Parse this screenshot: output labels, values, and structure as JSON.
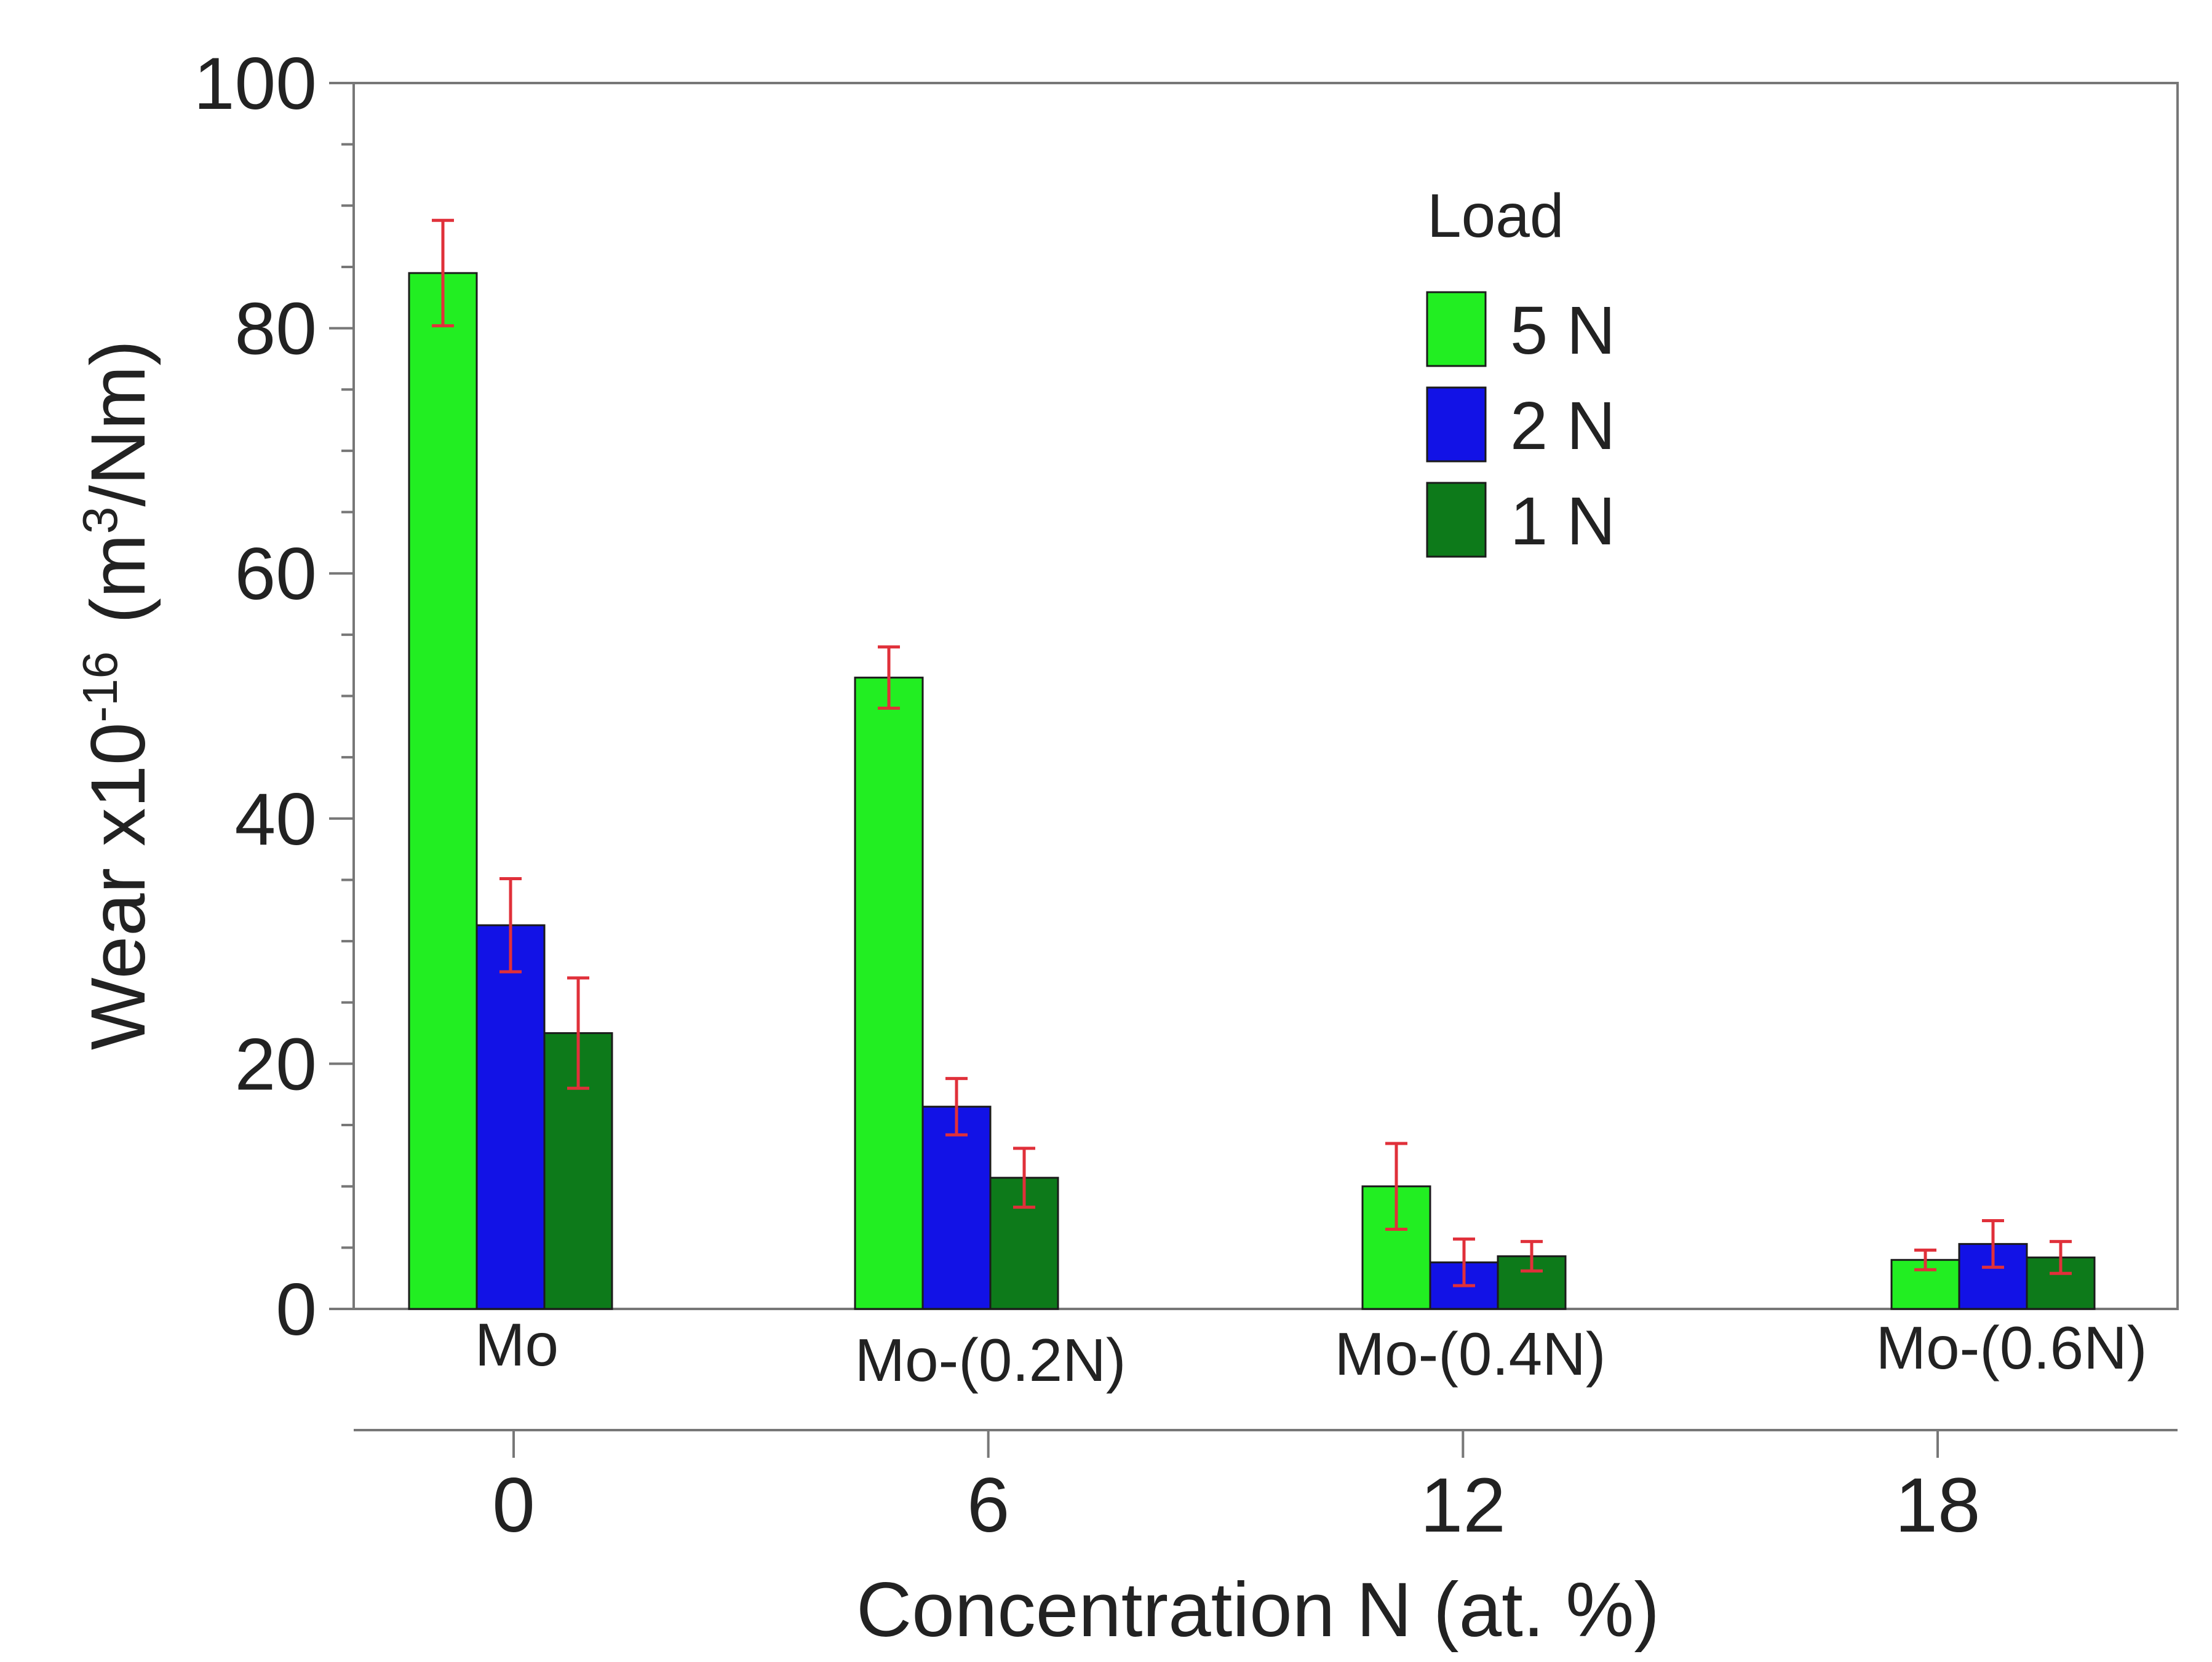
{
  "chart_data": {
    "type": "bar",
    "title": "",
    "ylabel_main": "Wear x10",
    "ylabel_exp": "-16",
    "ylabel_unit_pre": "(m",
    "ylabel_unit_sup": "3",
    "ylabel_unit_post": "/Nm)",
    "xlabel": "Concentration N  (at. %)",
    "ylim": [
      0,
      100
    ],
    "yticks": [
      0,
      20,
      40,
      60,
      80,
      100
    ],
    "x_numeric": [
      0,
      6,
      12,
      18
    ],
    "x_numeric_labels": [
      "0",
      "6",
      "12",
      "18"
    ],
    "categories": [
      "Mo",
      "Mo-(0.2N)",
      "Mo-(0.4N)",
      "Mo-(0.6N)"
    ],
    "legend": {
      "title": "Load",
      "position": "top-right"
    },
    "series": [
      {
        "name": "5 N",
        "color": "#22ee22",
        "values": [
          84.5,
          51.5,
          10.0,
          4.0
        ],
        "errors": [
          4.3,
          2.5,
          3.5,
          0.8
        ]
      },
      {
        "name": "2 N",
        "color": "#1212e6",
        "values": [
          31.3,
          16.5,
          3.8,
          5.3
        ],
        "errors": [
          3.8,
          2.3,
          1.9,
          1.9
        ]
      },
      {
        "name": "1 N",
        "color": "#0d7a1a",
        "values": [
          22.5,
          10.7,
          4.3,
          4.2
        ],
        "errors": [
          4.5,
          2.4,
          1.2,
          1.3
        ]
      }
    ],
    "error_bar_color": "#e0303a",
    "grid": false
  }
}
